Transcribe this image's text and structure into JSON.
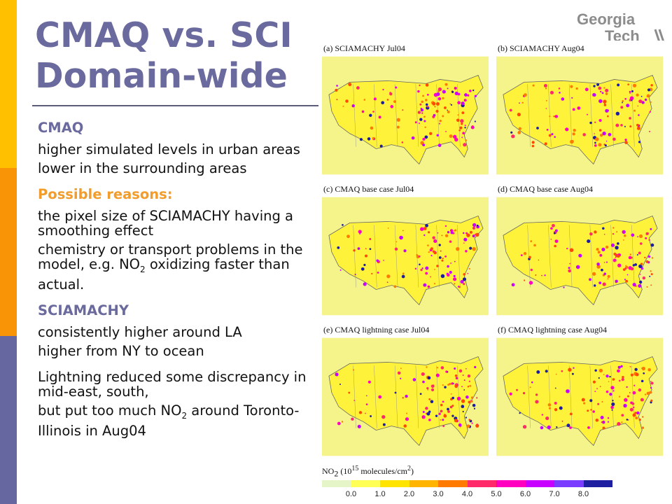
{
  "title": {
    "line1": "CMAQ vs. SCI",
    "line2": "Domain-wide"
  },
  "logo": {
    "line1": "Georgia",
    "line2": "Tech"
  },
  "content": {
    "section1_heading": "CMAQ",
    "s1_item1": "higher simulated levels in urban areas",
    "s1_item2": "lower in the surrounding areas",
    "section2_heading": "Possible reasons:",
    "s2_item1": "the pixel size of SCIAMACHY having a smoothing effect",
    "s2_item2_a": "chemistry or transport problems in the model, e.g. NO",
    "s2_item2_sub": "2",
    "s2_item2_b": " oxidizing faster than actual.",
    "section3_heading": "SCIAMACHY",
    "s3_item1": "consistently higher around LA",
    "s3_item2": "higher from NY to ocean",
    "s4_item1": "Lightning reduced some discrepancy in mid-east, south,",
    "s4_item2_a": "but put too much NO",
    "s4_item2_sub": "2",
    "s4_item2_b": " around Toronto-Illinois in Aug04"
  },
  "figure": {
    "panels": [
      {
        "label": "(a) SCIAMACHY Jul04"
      },
      {
        "label": "(b) SCIAMACHY Aug04"
      },
      {
        "label": "(c) CMAQ base case Jul04"
      },
      {
        "label": "(d) CMAQ base case Aug04"
      },
      {
        "label": "(e) CMAQ lightning case Jul04"
      },
      {
        "label": "(f) CMAQ lightning case Aug04"
      }
    ],
    "colorbar_label_a": "NO",
    "colorbar_label_sub": "2",
    "colorbar_label_b": " (10",
    "colorbar_label_sup": "15",
    "colorbar_label_c": " molecules/cm",
    "colorbar_label_sup2": "2",
    "colorbar_label_d": ")",
    "colorbar_colors": [
      "#E6F5C8",
      "#FFFF55",
      "#FFE400",
      "#FFB400",
      "#FF7A00",
      "#FF2A6A",
      "#FF00C0",
      "#C800FF",
      "#7A3CFF",
      "#1E1EA0"
    ],
    "ticks": [
      "0.0",
      "1.0",
      "2.0",
      "3.0",
      "4.0",
      "5.0",
      "6.0",
      "7.0",
      "8.0"
    ]
  },
  "colors": {
    "title": "#6A6A9E",
    "accent_yellow": "#FFC000",
    "accent_orange": "#F89406",
    "accent_purple": "#6667A0",
    "reasons_heading": "#F29C2B"
  }
}
